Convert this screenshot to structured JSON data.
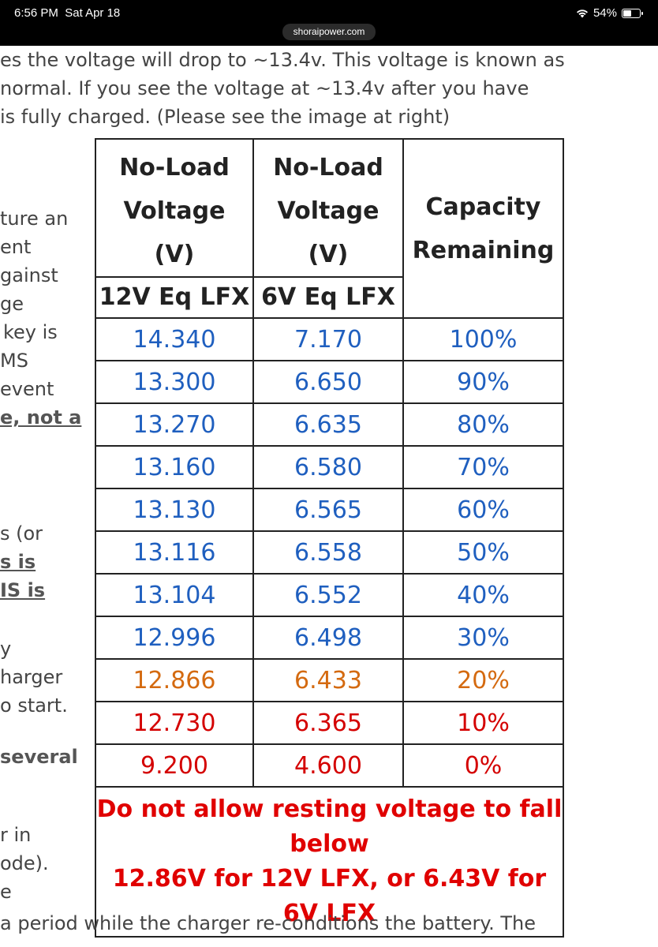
{
  "status_bar": {
    "time": "6:56 PM",
    "date": "Sat Apr 18",
    "battery": "54%",
    "battery_level": 0.54,
    "url": "shoraipower.com"
  },
  "top_text": [
    "es the voltage will drop to ~13.4v. This voltage is known as",
    "normal. If you see the voltage at ~13.4v after you have",
    "is fully charged. (Please see the image at right)"
  ],
  "left_fragments": [
    {
      "text": "ture an",
      "style": "normal"
    },
    {
      "text": "ent",
      "style": "normal"
    },
    {
      "text": "gainst",
      "style": "normal"
    },
    {
      "text": "ge",
      "style": "normal"
    },
    {
      "text": "key is",
      "style": "normal"
    },
    {
      "text": "MS",
      "style": "normal"
    },
    {
      "text": "event",
      "style": "normal"
    },
    {
      "text": "e, not a",
      "style": "underline"
    },
    {
      "text": "s (or",
      "style": "normal"
    },
    {
      "text": "s is",
      "style": "underline"
    },
    {
      "text": "IS is",
      "style": "underline"
    },
    {
      "text": "y",
      "style": "normal"
    },
    {
      "text": "harger",
      "style": "normal"
    },
    {
      "text": "o start.",
      "style": "normal"
    },
    {
      "text": "several",
      "style": "bold"
    },
    {
      "text": "r in",
      "style": "normal"
    },
    {
      "text": "ode).",
      "style": "normal"
    },
    {
      "text": "e",
      "style": "normal"
    }
  ],
  "bottom_text": "a period while the charger re-conditions the battery. The",
  "table": {
    "header": {
      "col1": "No-Load Voltage (V)",
      "col2": "No-Load Voltage (V)",
      "col3": "Capacity Remaining",
      "sub1": "12V Eq LFX",
      "sub2": "6V Eq LFX"
    },
    "rows": [
      {
        "v12": "14.340",
        "v6": "7.170",
        "cap": "100%",
        "color": "blue"
      },
      {
        "v12": "13.300",
        "v6": "6.650",
        "cap": "90%",
        "color": "blue"
      },
      {
        "v12": "13.270",
        "v6": "6.635",
        "cap": "80%",
        "color": "blue"
      },
      {
        "v12": "13.160",
        "v6": "6.580",
        "cap": "70%",
        "color": "blue"
      },
      {
        "v12": "13.130",
        "v6": "6.565",
        "cap": "60%",
        "color": "blue"
      },
      {
        "v12": "13.116",
        "v6": "6.558",
        "cap": "50%",
        "color": "blue"
      },
      {
        "v12": "13.104",
        "v6": "6.552",
        "cap": "40%",
        "color": "blue"
      },
      {
        "v12": "12.996",
        "v6": "6.498",
        "cap": "30%",
        "color": "blue"
      },
      {
        "v12": "12.866",
        "v6": "6.433",
        "cap": "20%",
        "color": "orange"
      },
      {
        "v12": "12.730",
        "v6": "6.365",
        "cap": "10%",
        "color": "red"
      },
      {
        "v12": "9.200",
        "v6": "4.600",
        "cap": "0%",
        "color": "red"
      }
    ],
    "warning_line1": "Do not allow resting voltage to fall below",
    "warning_line2": "12.86V for 12V LFX, or 6.43V for 6V LFX"
  },
  "colors": {
    "blue": "#1f5fbf",
    "orange": "#d46a10",
    "red": "#d40000"
  }
}
